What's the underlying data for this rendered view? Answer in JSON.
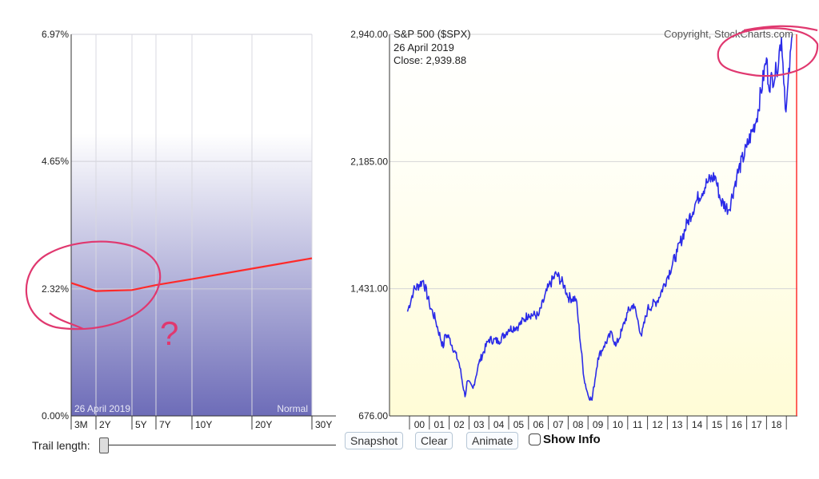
{
  "chart_data": [
    {
      "type": "line",
      "title": "",
      "y_tick_labels": [
        "6.97%",
        "4.65%",
        "2.32%",
        "0.00%"
      ],
      "x_tick_labels": [
        "3M",
        "2Y",
        "5Y",
        "7Y",
        "10Y",
        "20Y",
        "30Y"
      ],
      "ylim": [
        0,
        6.97
      ],
      "series": [
        {
          "x": [
            "3M",
            "2Y",
            "5Y",
            "7Y",
            "10Y",
            "20Y",
            "30Y"
          ],
          "values": [
            2.43,
            2.28,
            2.3,
            2.39,
            2.5,
            2.69,
            2.88
          ]
        }
      ],
      "date_label": "26  April 2019",
      "curve_label": "Normal",
      "colors": {
        "plot_bg_top": "#ffffff",
        "plot_bg_bottom": "#6d6cb8",
        "line": "#ff2a2a"
      }
    },
    {
      "type": "line",
      "title": "S&P 500 ($SPX)",
      "copyright": "Copyright, StockCharts.com",
      "date_label": "26  April 2019",
      "close_label": "Close: 2,939.88",
      "y_tick_labels": [
        "2,940.00",
        "2,185.00",
        "1,431.00",
        "676.00"
      ],
      "ylim": [
        676,
        2940
      ],
      "x_tick_labels": [
        "00",
        "01",
        "02",
        "03",
        "04",
        "05",
        "06",
        "07",
        "08",
        "09",
        "10",
        "11",
        "12",
        "13",
        "14",
        "15",
        "16",
        "17",
        "18"
      ],
      "series": [
        {
          "x": [
            1999.9,
            2000.2,
            2000.7,
            2001.0,
            2001.3,
            2001.7,
            2001.8,
            2002.0,
            2002.5,
            2002.8,
            2002.9,
            2003.2,
            2003.5,
            2004.0,
            2004.5,
            2005.0,
            2005.5,
            2006.0,
            2006.5,
            2007.0,
            2007.4,
            2007.8,
            2008.0,
            2008.4,
            2008.8,
            2009.0,
            2009.2,
            2009.5,
            2009.8,
            2010.2,
            2010.4,
            2010.7,
            2011.0,
            2011.3,
            2011.7,
            2012.0,
            2012.5,
            2013.0,
            2013.5,
            2014.0,
            2014.5,
            2015.0,
            2015.4,
            2015.7,
            2016.1,
            2016.5,
            2017.0,
            2017.5,
            2018.0,
            2018.1,
            2018.5,
            2018.75,
            2018.98,
            2019.3
          ],
          "values": [
            1295,
            1420,
            1480,
            1340,
            1250,
            1080,
            1160,
            1140,
            990,
            790,
            880,
            840,
            990,
            1130,
            1120,
            1190,
            1210,
            1280,
            1270,
            1440,
            1520,
            1450,
            1380,
            1370,
            900,
            800,
            770,
            1020,
            1090,
            1170,
            1090,
            1180,
            1290,
            1340,
            1150,
            1310,
            1360,
            1500,
            1650,
            1820,
            1960,
            2060,
            2100,
            1950,
            1900,
            2100,
            2270,
            2440,
            2800,
            2640,
            2720,
            2920,
            2480,
            2940
          ]
        }
      ],
      "colors": {
        "plot_bg_top": "#ffffff",
        "plot_bg_bottom": "#fffcd6",
        "line": "#2b2be8",
        "cursor": "#ff3030",
        "grid": "#d6d6d6"
      }
    }
  ],
  "controls": {
    "trail_length_label": "Trail length:",
    "snapshot_label": "Snapshot",
    "clear_label": "Clear",
    "animate_label": "Animate",
    "show_info_label": "Show Info"
  },
  "annotations": {
    "question_mark": "?"
  }
}
